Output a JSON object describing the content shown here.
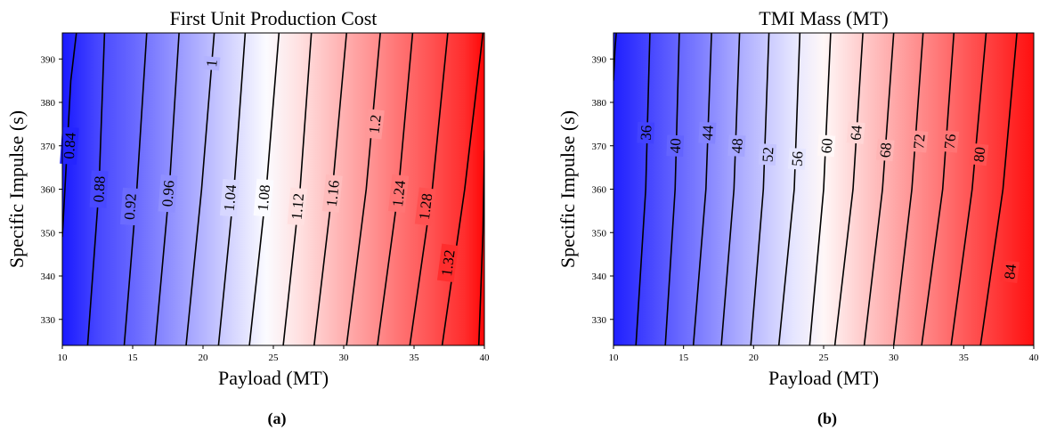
{
  "chart_data": [
    {
      "type": "contour",
      "title": "First Unit Production Cost",
      "xlabel": "Payload (MT)",
      "ylabel": "Specific Impulse (s)",
      "xlim": [
        10,
        40
      ],
      "ylim": [
        324,
        396
      ],
      "xticks": [
        10,
        15,
        20,
        25,
        30,
        35,
        40
      ],
      "yticks": [
        330,
        340,
        350,
        360,
        370,
        380,
        390
      ],
      "colormap": [
        "#0000ff",
        "#ffffff",
        "#ff0000"
      ],
      "color_range": [
        0.8,
        1.37
      ],
      "grid": false,
      "caption": "(a)",
      "levels": [
        {
          "value": 0.84,
          "label": "0.84",
          "x": [
            10.0,
            10.6,
            11.0
          ],
          "y": [
            349,
            385,
            396
          ],
          "label_at": [
            10.5,
            370
          ]
        },
        {
          "value": 0.88,
          "label": "0.88",
          "x": [
            11.8,
            12.6,
            13.0
          ],
          "y": [
            324,
            360,
            396
          ],
          "label_at": [
            12.6,
            360
          ]
        },
        {
          "value": 0.92,
          "label": "0.92",
          "x": [
            14.4,
            15.3,
            16.0
          ],
          "y": [
            324,
            360,
            396
          ],
          "label_at": [
            14.8,
            356
          ]
        },
        {
          "value": 0.96,
          "label": "0.96",
          "x": [
            16.6,
            17.6,
            18.3
          ],
          "y": [
            324,
            360,
            396
          ],
          "label_at": [
            17.5,
            359
          ]
        },
        {
          "value": 1.0,
          "label": "1",
          "x": [
            18.8,
            19.9,
            20.8
          ],
          "y": [
            324,
            360,
            396
          ],
          "label_at": [
            20.6,
            389
          ]
        },
        {
          "value": 1.04,
          "label": "1.04",
          "x": [
            21.1,
            22.2,
            23.0
          ],
          "y": [
            324,
            360,
            396
          ],
          "label_at": [
            21.9,
            358
          ]
        },
        {
          "value": 1.08,
          "label": "1.08",
          "x": [
            23.3,
            24.5,
            25.4
          ],
          "y": [
            324,
            360,
            396
          ],
          "label_at": [
            24.3,
            358
          ]
        },
        {
          "value": 1.12,
          "label": "1.12",
          "x": [
            25.7,
            26.9,
            27.7
          ],
          "y": [
            324,
            360,
            396
          ],
          "label_at": [
            26.7,
            356
          ]
        },
        {
          "value": 1.16,
          "label": "1.16",
          "x": [
            27.9,
            29.2,
            30.2
          ],
          "y": [
            324,
            360,
            396
          ],
          "label_at": [
            29.2,
            359
          ]
        },
        {
          "value": 1.2,
          "label": "1.2",
          "x": [
            30.2,
            31.6,
            32.6
          ],
          "y": [
            324,
            360,
            396
          ],
          "label_at": [
            32.2,
            375
          ]
        },
        {
          "value": 1.24,
          "label": "1.24",
          "x": [
            32.4,
            33.9,
            34.9
          ],
          "y": [
            324,
            360,
            396
          ],
          "label_at": [
            33.9,
            359
          ]
        },
        {
          "value": 1.28,
          "label": "1.28",
          "x": [
            34.7,
            36.3,
            37.4
          ],
          "y": [
            324,
            360,
            396
          ],
          "label_at": [
            35.8,
            356
          ]
        },
        {
          "value": 1.32,
          "label": "1.32",
          "x": [
            37.0,
            38.6,
            39.9
          ],
          "y": [
            324,
            360,
            396
          ],
          "label_at": [
            37.4,
            343
          ]
        },
        {
          "value": 1.36,
          "label": "",
          "x": [
            39.6,
            39.9,
            40.0
          ],
          "y": [
            324,
            350,
            369
          ],
          "label_at": null
        }
      ]
    },
    {
      "type": "contour",
      "title": "TMI Mass (MT)",
      "xlabel": "Payload (MT)",
      "ylabel": "Specific Impulse (s)",
      "xlim": [
        10,
        40
      ],
      "ylim": [
        324,
        396
      ],
      "xticks": [
        10,
        15,
        20,
        25,
        30,
        35,
        40
      ],
      "yticks": [
        330,
        340,
        350,
        360,
        370,
        380,
        390
      ],
      "colormap": [
        "#0000ff",
        "#ffffff",
        "#ff0000"
      ],
      "color_range": [
        28,
        90
      ],
      "grid": false,
      "caption": "(b)",
      "levels": [
        {
          "value": 32,
          "label": "",
          "x": [
            10.0,
            10.1,
            10.2
          ],
          "y": [
            385,
            392,
            396
          ],
          "label_at": null
        },
        {
          "value": 36,
          "label": "36",
          "x": [
            11.6,
            12.3,
            12.6
          ],
          "y": [
            324,
            360,
            396
          ],
          "label_at": [
            12.3,
            373
          ]
        },
        {
          "value": 40,
          "label": "40",
          "x": [
            13.7,
            14.4,
            14.7
          ],
          "y": [
            324,
            360,
            396
          ],
          "label_at": [
            14.4,
            370
          ]
        },
        {
          "value": 44,
          "label": "44",
          "x": [
            15.7,
            16.6,
            17.0
          ],
          "y": [
            324,
            360,
            396
          ],
          "label_at": [
            16.7,
            373
          ]
        },
        {
          "value": 48,
          "label": "48",
          "x": [
            17.7,
            18.6,
            19.0
          ],
          "y": [
            324,
            360,
            396
          ],
          "label_at": [
            18.8,
            370
          ]
        },
        {
          "value": 52,
          "label": "52",
          "x": [
            19.8,
            20.7,
            21.1
          ],
          "y": [
            324,
            360,
            396
          ],
          "label_at": [
            21.0,
            368
          ]
        },
        {
          "value": 56,
          "label": "56",
          "x": [
            21.8,
            22.9,
            23.3
          ],
          "y": [
            324,
            360,
            396
          ],
          "label_at": [
            23.1,
            367
          ]
        },
        {
          "value": 60,
          "label": "60",
          "x": [
            24.0,
            25.0,
            25.5
          ],
          "y": [
            324,
            360,
            396
          ],
          "label_at": [
            25.2,
            370
          ]
        },
        {
          "value": 64,
          "label": "64",
          "x": [
            25.8,
            27.1,
            27.8
          ],
          "y": [
            324,
            360,
            396
          ],
          "label_at": [
            27.3,
            373
          ]
        },
        {
          "value": 68,
          "label": "68",
          "x": [
            27.9,
            29.2,
            30.0
          ],
          "y": [
            324,
            360,
            396
          ],
          "label_at": [
            29.4,
            369
          ]
        },
        {
          "value": 72,
          "label": "72",
          "x": [
            30.0,
            31.3,
            32.1
          ],
          "y": [
            324,
            360,
            396
          ],
          "label_at": [
            31.8,
            371
          ]
        },
        {
          "value": 76,
          "label": "76",
          "x": [
            32.0,
            33.5,
            34.3
          ],
          "y": [
            324,
            360,
            396
          ],
          "label_at": [
            34.0,
            371
          ]
        },
        {
          "value": 80,
          "label": "80",
          "x": [
            34.1,
            35.6,
            36.6
          ],
          "y": [
            324,
            360,
            396
          ],
          "label_at": [
            36.1,
            368
          ]
        },
        {
          "value": 84,
          "label": "84",
          "x": [
            36.2,
            37.8,
            38.8
          ],
          "y": [
            324,
            360,
            396
          ],
          "label_at": [
            38.3,
            341
          ]
        }
      ]
    }
  ]
}
